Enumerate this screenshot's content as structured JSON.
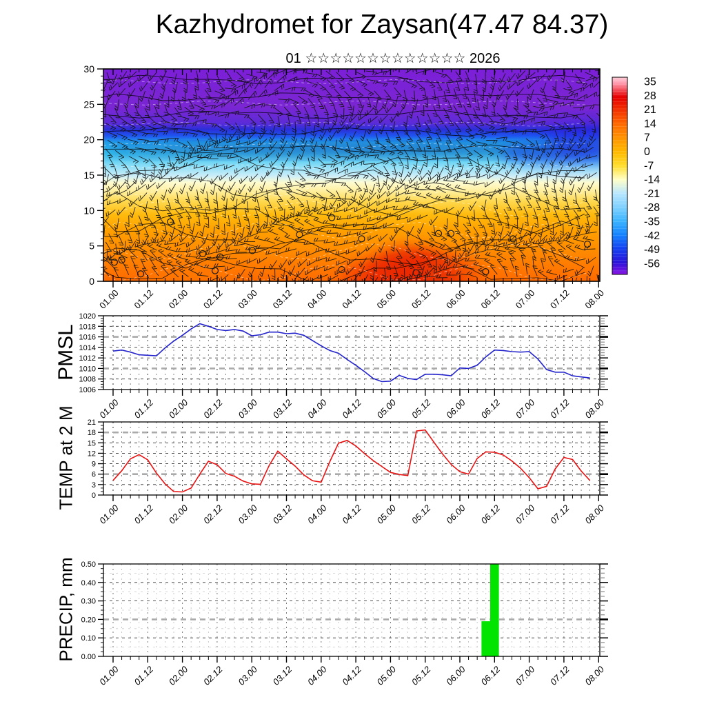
{
  "header": {
    "title": "Kazhydromet for Zaysan(47.47 84.37)",
    "subtitle": "01 ☆☆☆☆☆☆☆☆☆☆☆☆☆ 2026"
  },
  "time_axis": {
    "labels": [
      "01.00",
      "01.12",
      "02.00",
      "02.12",
      "03.00",
      "03.12",
      "04.00",
      "04.12",
      "05.00",
      "05.12",
      "06.00",
      "06.12",
      "07.00",
      "07.12",
      "08.00"
    ],
    "points_start": "01.00",
    "points_step_hours": 3
  },
  "chart_data": [
    {
      "id": "cross_section",
      "type": "heatmap",
      "description": "Vertical cross-section of temperature (shaded, deg C) with wind barbs",
      "yrange": [
        0,
        30
      ],
      "yticks": [
        0,
        5,
        10,
        15,
        20,
        25,
        30
      ],
      "colorbar_ticks": [
        35,
        28,
        21,
        14,
        7,
        0,
        -7,
        -14,
        -21,
        -28,
        -35,
        -42,
        -49,
        -56
      ],
      "colorbar_stops": [
        [
          "0.00",
          "#ffd0da"
        ],
        [
          "0.03",
          "#ff9bb0"
        ],
        [
          "0.10",
          "#e60000"
        ],
        [
          "0.17",
          "#f23300"
        ],
        [
          "0.24",
          "#ff6a00"
        ],
        [
          "0.31",
          "#ff9400"
        ],
        [
          "0.38",
          "#ffb900"
        ],
        [
          "0.45",
          "#ffde30"
        ],
        [
          "0.52",
          "#ffffc8"
        ],
        [
          "0.59",
          "#b8e6ff"
        ],
        [
          "0.66",
          "#7ed0ff"
        ],
        [
          "0.73",
          "#3cb4ff"
        ],
        [
          "0.80",
          "#1482ff"
        ],
        [
          "0.87",
          "#1440f0"
        ],
        [
          "0.94",
          "#2a14d8"
        ],
        [
          "1.00",
          "#8a14e6"
        ]
      ],
      "field_stops": [
        [
          "0.00",
          "#7b1fd8"
        ],
        [
          "0.18",
          "#7a26d2"
        ],
        [
          "0.255",
          "#5c2bd8"
        ],
        [
          "0.285",
          "#2a2fd8"
        ],
        [
          "0.315",
          "#1f55f0"
        ],
        [
          "0.345",
          "#22a0ea"
        ],
        [
          "0.40",
          "#35c3ef"
        ],
        [
          "0.46",
          "#8fdff7"
        ],
        [
          "0.505",
          "#cdeef8"
        ],
        [
          "0.535",
          "#fdfbd0"
        ],
        [
          "0.575",
          "#ffef9e"
        ],
        [
          "0.625",
          "#ffd84e"
        ],
        [
          "0.685",
          "#ffbb0e"
        ],
        [
          "0.76",
          "#ffa000"
        ],
        [
          "0.85",
          "#ff8c00"
        ],
        [
          "0.93",
          "#ff7a00"
        ],
        [
          "1.00",
          "#ff6a00"
        ]
      ],
      "calm_circles": [
        [
          0.022,
          0.91
        ],
        [
          0.037,
          0.9
        ],
        [
          0.075,
          0.965
        ],
        [
          0.2,
          0.87
        ],
        [
          0.235,
          0.885
        ],
        [
          0.225,
          0.95
        ],
        [
          0.3,
          0.855
        ],
        [
          0.395,
          0.78
        ],
        [
          0.48,
          0.945
        ],
        [
          0.52,
          0.8
        ],
        [
          0.675,
          0.775
        ],
        [
          0.7,
          0.775
        ],
        [
          0.825,
          0.8
        ],
        [
          0.975,
          0.825
        ],
        [
          0.63,
          0.96
        ],
        [
          0.77,
          0.955
        ],
        [
          0.46,
          0.7
        ],
        [
          0.135,
          0.72
        ]
      ]
    },
    {
      "id": "pmsl",
      "label": "PMSL",
      "type": "line",
      "color": "#2323cc",
      "yrange": [
        1006,
        1020
      ],
      "ytick_step": 2,
      "gray_gridlines": [
        1016,
        1010
      ],
      "values": [
        1013.3,
        1013.5,
        1013.1,
        1012.6,
        1012.5,
        1012.4,
        1013.9,
        1015.2,
        1016.3,
        1017.5,
        1018.5,
        1018.0,
        1017.4,
        1017.2,
        1017.4,
        1017.1,
        1016.2,
        1016.4,
        1016.9,
        1016.9,
        1016.6,
        1016.7,
        1016.3,
        1015.3,
        1014.3,
        1013.4,
        1012.9,
        1011.7,
        1010.6,
        1009.4,
        1008.1,
        1007.5,
        1007.6,
        1008.7,
        1008.1,
        1007.9,
        1008.9,
        1008.9,
        1008.8,
        1008.6,
        1010.1,
        1010.0,
        1010.6,
        1012.2,
        1013.5,
        1013.4,
        1013.2,
        1013.1,
        1013.2,
        1011.8,
        1009.8,
        1009.3,
        1009.3,
        1008.6,
        1008.4,
        1008.2
      ]
    },
    {
      "id": "temp2m",
      "label": "TEMP at 2 M",
      "type": "line",
      "color": "#e81212",
      "yrange": [
        0,
        21
      ],
      "ytick_step": 3,
      "gray_gridlines": [
        18,
        6
      ],
      "values": [
        4.2,
        7.0,
        10.4,
        11.6,
        10.1,
        6.3,
        3.2,
        1.0,
        0.9,
        2.0,
        6.0,
        9.7,
        8.7,
        6.2,
        5.4,
        4.0,
        3.2,
        3.1,
        8.5,
        12.6,
        10.4,
        8.3,
        5.8,
        4.1,
        3.7,
        9.6,
        14.9,
        15.7,
        14.1,
        11.9,
        9.9,
        8.2,
        6.5,
        5.9,
        5.6,
        18.4,
        18.7,
        15.2,
        11.8,
        8.8,
        6.7,
        6.0,
        10.5,
        12.4,
        12.3,
        11.5,
        9.8,
        7.7,
        5.0,
        1.8,
        2.5,
        7.5,
        10.8,
        10.2,
        6.9,
        4.2
      ]
    },
    {
      "id": "precip",
      "label": "PRECIP, mm",
      "type": "bar",
      "color": "#00e400",
      "yrange": [
        0,
        0.5
      ],
      "ytick_step": 0.1,
      "ytick_labels": [
        "0.00",
        "0.10",
        "0.20",
        "0.30",
        "0.40",
        "0.50"
      ],
      "gray_gridlines": [
        0.2
      ],
      "values": [
        0,
        0,
        0,
        0,
        0,
        0,
        0,
        0,
        0,
        0,
        0,
        0,
        0,
        0,
        0,
        0,
        0,
        0,
        0,
        0,
        0,
        0,
        0,
        0,
        0,
        0,
        0,
        0,
        0,
        0,
        0,
        0,
        0,
        0,
        0,
        0,
        0,
        0,
        0,
        0,
        0,
        0,
        0,
        0.19,
        0.5,
        0,
        0,
        0,
        0,
        0,
        0,
        0,
        0,
        0,
        0,
        0
      ]
    }
  ]
}
